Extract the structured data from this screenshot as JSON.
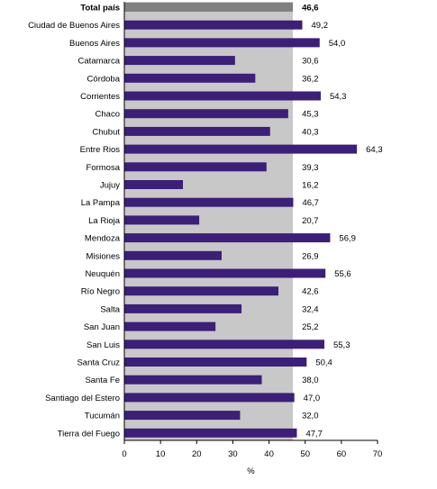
{
  "chart_data": {
    "type": "bar",
    "orientation": "horizontal",
    "xlabel": "%",
    "xlim": [
      0,
      70
    ],
    "xticks": [
      "0",
      "10",
      "20",
      "30",
      "40",
      "50",
      "60",
      "70"
    ],
    "reference_band_value": 46.6,
    "colors": {
      "bar": "#3b1f78",
      "total_bar": "#808080",
      "band": "#c8c8c8"
    },
    "categories": [
      "Total país",
      "Ciudad de Buenos Aires",
      "Buenos Aires",
      "Catamarca",
      "Córdoba",
      "Corrientes",
      "Chaco",
      "Chubut",
      "Entre Rios",
      "Formosa",
      "Jujuy",
      "La Pampa",
      "La Rioja",
      "Mendoza",
      "Misiones",
      "Neuquén",
      "Río Negro",
      "Salta",
      "San Juan",
      "San Luis",
      "Santa Cruz",
      "Santa Fe",
      "Santiago del Estero",
      "Tucumán",
      "Tierra del Fuego"
    ],
    "values": [
      46.6,
      49.2,
      54.0,
      30.6,
      36.2,
      54.3,
      45.3,
      40.3,
      64.3,
      39.3,
      16.2,
      46.7,
      20.7,
      56.9,
      26.9,
      55.6,
      42.6,
      32.4,
      25.2,
      55.3,
      50.4,
      38.0,
      47.0,
      32.0,
      47.7
    ],
    "value_labels": [
      "46,6",
      "49,2",
      "54,0",
      "30,6",
      "36,2",
      "54,3",
      "45,3",
      "40,3",
      "64,3",
      "39,3",
      "16,2",
      "46,7",
      "20,7",
      "56,9",
      "26,9",
      "55,6",
      "42,6",
      "32,4",
      "25,2",
      "55,3",
      "50,4",
      "38,0",
      "47,0",
      "32,0",
      "47,7"
    ]
  }
}
